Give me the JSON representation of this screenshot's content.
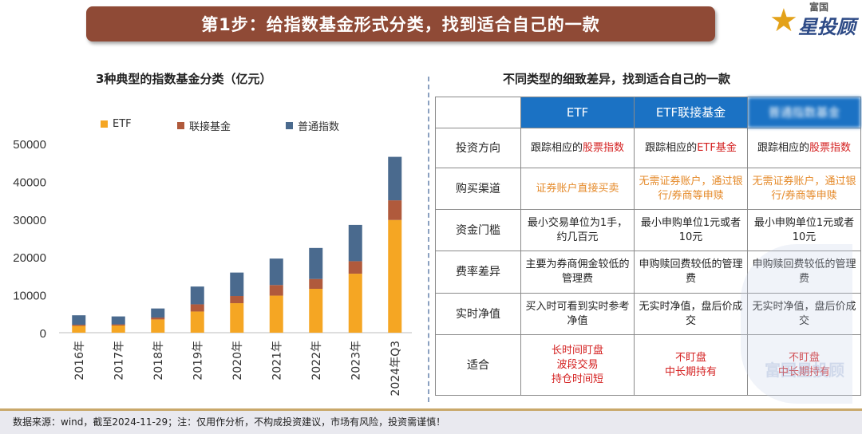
{
  "header": {
    "title": "第1步：给指数基金形式分类，找到适合自己的一款",
    "brand_top": "富国",
    "brand_name": "星投顾"
  },
  "left_panel": {
    "title": "3种典型的指数基金分类（亿元）"
  },
  "right_panel": {
    "title": "不同类型的细致差异，找到适合自己的一款"
  },
  "colors": {
    "etf": "#f5a623",
    "link": "#b05a3c",
    "normal": "#4a6a8e",
    "banner": "#8f4a36",
    "table_header": "#1b72c4"
  },
  "chart_data": {
    "type": "bar",
    "stacked": true,
    "categories": [
      "2016年",
      "2017年",
      "2018年",
      "2019年",
      "2020年",
      "2021年",
      "2022年",
      "2023年",
      "2024年Q3"
    ],
    "series": [
      {
        "name": "ETF",
        "values": [
          1800,
          1900,
          3500,
          5600,
          7800,
          9800,
          11600,
          15600,
          29800
        ]
      },
      {
        "name": "联接基金",
        "values": [
          300,
          300,
          500,
          1900,
          1900,
          2800,
          2600,
          3300,
          5200
        ]
      },
      {
        "name": "普通指数",
        "values": [
          2500,
          2100,
          2400,
          4700,
          6200,
          7000,
          8200,
          9600,
          11500
        ]
      }
    ],
    "y_ticks": [
      "50000",
      "40000",
      "30000",
      "20000",
      "10000",
      "0"
    ],
    "ylim": [
      0,
      50000
    ],
    "grid": false,
    "legend": "top"
  },
  "table": {
    "headers": [
      "",
      "ETF",
      "ETF联接基金",
      "普通指数基金"
    ],
    "rows": [
      {
        "label": "投资方向",
        "cells": [
          [
            "跟踪相应的",
            "股票指数"
          ],
          [
            "跟踪相应的",
            "ETF基金"
          ],
          [
            "跟踪相应的",
            "股票指数"
          ]
        ]
      },
      {
        "label": "购买渠道",
        "cells": [
          "证券账户直接买卖",
          "无需证券账户，通过银行/券商等申赎",
          "无需证券账户，通过银行/券商等申赎"
        ]
      },
      {
        "label": "资金门槛",
        "cells": [
          "最小交易单位为1手，约几百元",
          "最小申购单位1元或者10元",
          "最小申购单位1元或者10元"
        ]
      },
      {
        "label": "费率差异",
        "cells": [
          "主要为券商佣金较低的管理费",
          "申购赎回费较低的管理费",
          "申购赎回费较低的管理费"
        ]
      },
      {
        "label": "实时净值",
        "cells": [
          "买入时可看到实时参考净值",
          "无实时净值，盘后价成交",
          "无实时净值，盘后价成交"
        ]
      },
      {
        "label": "适合",
        "cells": [
          "长时间盯盘\n波段交易\n持仓时间短",
          "不盯盘\n中长期持有",
          "不盯盘\n中长期持有"
        ]
      }
    ]
  },
  "watermark": "富国星投顾",
  "footer": {
    "text": "数据来源：wind，截至2024-11-29；注：仅用作分析，不构成投资建议，市场有风险，投资需谨慎！"
  }
}
